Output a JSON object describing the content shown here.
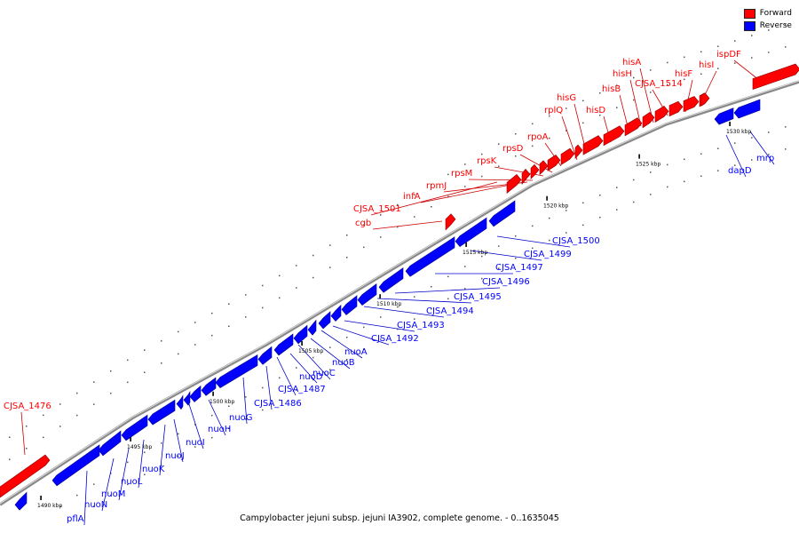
{
  "legend": [
    {
      "label": "Forward",
      "color": "#ff0000"
    },
    {
      "label": "Reverse",
      "color": "#0000ff"
    }
  ],
  "caption": "Campylobacter jejuni subsp. jejuni IA3902, complete genome. - 0..1635045",
  "colors": {
    "forward": "#ff0000",
    "reverse": "#0000ff",
    "backbone": "#888888",
    "leader_forward": "#cc0000",
    "leader_reverse": "#0000cc"
  },
  "scale_ticks": [
    "1490 kbp",
    "1495 kbp",
    "1500 kbp",
    "1505 kbp",
    "1510 kbp",
    "1515 kbp",
    "1520 kbp",
    "1525 kbp",
    "1530 kbp"
  ],
  "forward_genes": [
    "CJSA_1476",
    "cgb",
    "CJSA_1501",
    "infA",
    "rpmJ",
    "rpsM",
    "rpsK",
    "rpsD",
    "rpoA",
    "rplQ",
    "hisG",
    "hisD",
    "hisB",
    "hisH",
    "hisA",
    "CJSA_1514",
    "hisF",
    "hisI",
    "ispDF"
  ],
  "reverse_genes": [
    "pflA",
    "nuoN",
    "nuoM",
    "nuoL",
    "nuoK",
    "nuoJ",
    "nuoI",
    "nuoH",
    "nuoG",
    "CJSA_1486",
    "CJSA_1487",
    "nuoD",
    "nuoC",
    "nuoB",
    "nuoA",
    "CJSA_1492",
    "CJSA_1493",
    "CJSA_1494",
    "CJSA_1495",
    "CJSA_1496",
    "CJSA_1497",
    "CJSA_1499",
    "CJSA_1500",
    "dapD",
    "mrp"
  ]
}
